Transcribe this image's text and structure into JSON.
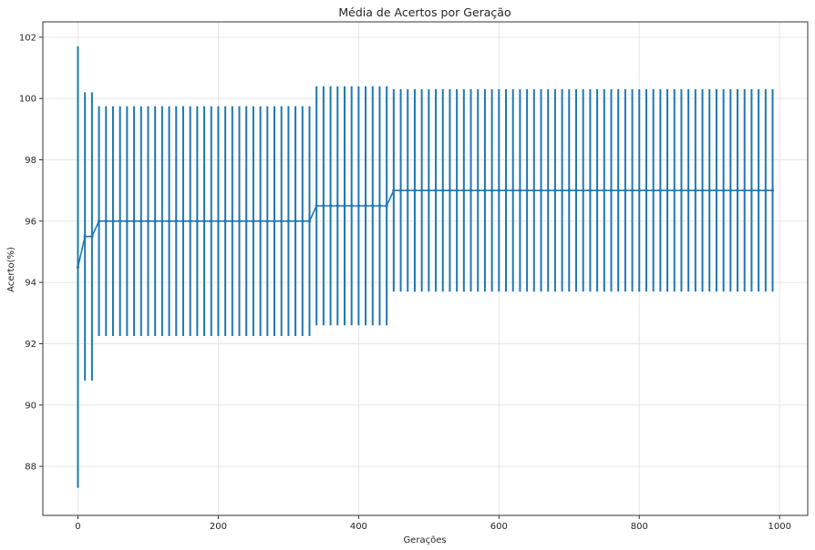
{
  "chart_data": {
    "type": "line",
    "title": "Média de Acertos por Geração",
    "xlabel": "Gerações",
    "ylabel": "Acerto(%)",
    "xlim": [
      -50,
      1040
    ],
    "ylim": [
      86.4,
      102.5
    ],
    "xticks": [
      0,
      200,
      400,
      600,
      800,
      1000
    ],
    "yticks": [
      88,
      90,
      92,
      94,
      96,
      98,
      100,
      102
    ],
    "grid": true,
    "legend": "none",
    "colors": {
      "series": "#1f77b4",
      "grid": "#e6e6e6",
      "axis": "#333333"
    },
    "series": [
      {
        "x_start": 0,
        "x_step": 10,
        "count": 100,
        "segments": [
          {
            "from_x": 0,
            "to_x": 0,
            "mean": 94.5,
            "err_low": 87.3,
            "err_high": 101.7
          },
          {
            "from_x": 10,
            "to_x": 20,
            "mean": 95.5,
            "err_low": 90.8,
            "err_high": 100.2
          },
          {
            "from_x": 30,
            "to_x": 330,
            "mean": 96.0,
            "err_low": 92.25,
            "err_high": 99.75
          },
          {
            "from_x": 340,
            "to_x": 440,
            "mean": 96.5,
            "err_low": 92.6,
            "err_high": 100.4
          },
          {
            "from_x": 450,
            "to_x": 990,
            "mean": 97.0,
            "err_low": 93.7,
            "err_high": 100.3
          }
        ]
      }
    ]
  }
}
